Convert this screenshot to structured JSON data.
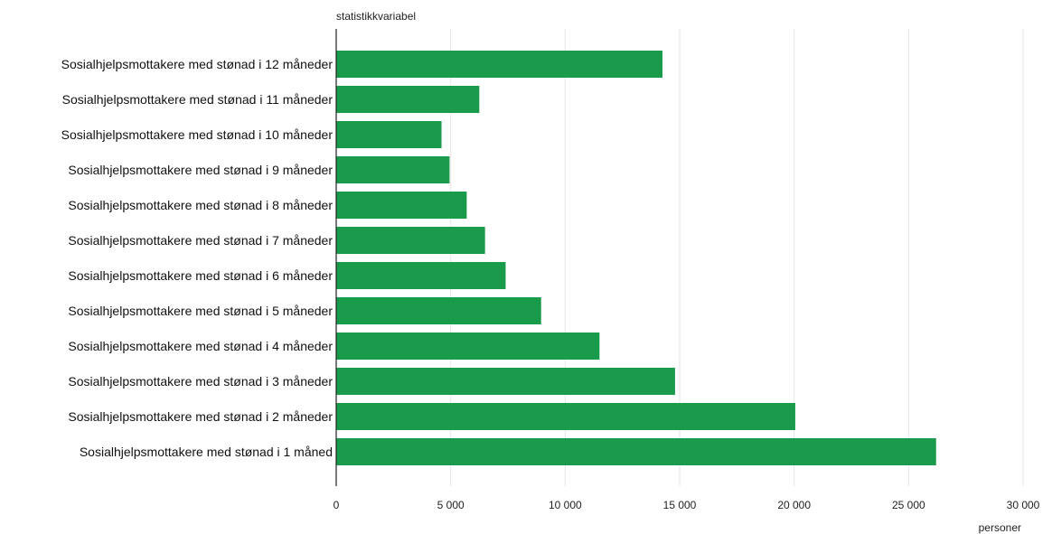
{
  "chart_data": {
    "type": "bar",
    "orientation": "horizontal",
    "ylabel": "statistikkvariabel",
    "xlabel": "personer",
    "categories": [
      "Sosialhjelpsmottakere med stønad i 12 måneder",
      "Sosialhjelpsmottakere med stønad i 11 måneder",
      "Sosialhjelpsmottakere med stønad i 10 måneder",
      "Sosialhjelpsmottakere med stønad i 9 måneder",
      "Sosialhjelpsmottakere med stønad i 8 måneder",
      "Sosialhjelpsmottakere med stønad i 7 måneder",
      "Sosialhjelpsmottakere med stønad i 6 måneder",
      "Sosialhjelpsmottakere med stønad i 5 måneder",
      "Sosialhjelpsmottakere med stønad i 4 måneder",
      "Sosialhjelpsmottakere med stønad i 3 måneder",
      "Sosialhjelpsmottakere med stønad i 2 måneder",
      "Sosialhjelpsmottakere med stønad i 1 måned"
    ],
    "values": [
      14250,
      6250,
      4600,
      4950,
      5700,
      6500,
      7400,
      8950,
      11500,
      14800,
      20050,
      26200
    ],
    "xlim": [
      0,
      30000
    ],
    "xticks": [
      0,
      5000,
      10000,
      15000,
      20000,
      25000,
      30000
    ],
    "xtick_labels": [
      "0",
      "5 000",
      "10 000",
      "15 000",
      "20 000",
      "25 000",
      "30 000"
    ],
    "grid": true,
    "bar_color": "#1a9b4b",
    "legend": "none"
  }
}
